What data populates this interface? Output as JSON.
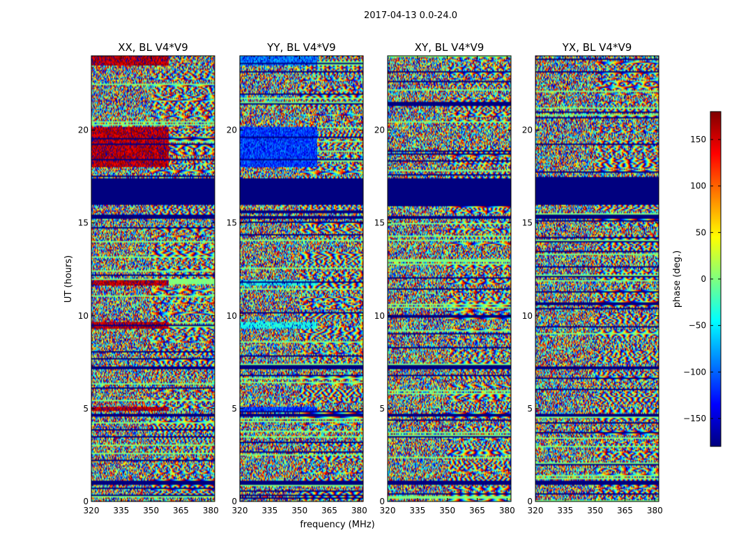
{
  "chart_data": {
    "type": "heatmap",
    "suptitle": "2017-04-13 0.0-24.0",
    "xlabel": "frequency (MHz)",
    "ylabel": "UT (hours)",
    "xlim": [
      320,
      382
    ],
    "ylim": [
      0,
      24
    ],
    "x_ticks": [
      320,
      335,
      350,
      365,
      380
    ],
    "y_ticks": [
      0,
      5,
      10,
      15,
      20
    ],
    "colorbar": {
      "label": "phase (deg.)",
      "range": [
        -180,
        180
      ],
      "ticks": [
        -150,
        -100,
        -50,
        0,
        50,
        100,
        150
      ],
      "tick_labels": [
        "−150",
        "−100",
        "−50",
        "0",
        "50",
        "100",
        "150"
      ],
      "colormap": "jet",
      "colormap_stops": [
        "#00007f",
        "#0000ff",
        "#007fff",
        "#00ffff",
        "#7fff7f",
        "#ffff00",
        "#ff7f00",
        "#ff0000",
        "#7f0000"
      ]
    },
    "panels": [
      {
        "title": "XX, BL V4*V9",
        "flagged_hours": [
          [
            16.0,
            17.4
          ],
          [
            15.2,
            15.4
          ],
          [
            7.1,
            7.3
          ],
          [
            4.6,
            4.75
          ],
          [
            0.9,
            1.1
          ]
        ],
        "coherent_blocks": [
          {
            "f": [
              320,
              359
            ],
            "t": [
              18.0,
              20.2
            ],
            "phase": 160
          },
          {
            "f": [
              320,
              359
            ],
            "t": [
              23.5,
              24.0
            ],
            "phase": 160
          },
          {
            "f": [
              320,
              359
            ],
            "t": [
              11.6,
              11.9
            ],
            "phase": 160
          },
          {
            "f": [
              320,
              359
            ],
            "t": [
              9.3,
              9.7
            ],
            "phase": 160
          },
          {
            "f": [
              320,
              359
            ],
            "t": [
              4.85,
              5.1
            ],
            "phase": 160
          }
        ]
      },
      {
        "title": "YY, BL V4*V9",
        "flagged_hours": [
          [
            16.0,
            17.4
          ],
          [
            15.2,
            15.4
          ],
          [
            7.1,
            7.3
          ],
          [
            4.6,
            4.75
          ],
          [
            0.9,
            1.1
          ]
        ],
        "coherent_blocks": [
          {
            "f": [
              320,
              359
            ],
            "t": [
              18.0,
              20.2
            ],
            "phase": -110
          },
          {
            "f": [
              320,
              359
            ],
            "t": [
              23.5,
              24.0
            ],
            "phase": -90
          },
          {
            "f": [
              320,
              359
            ],
            "t": [
              11.6,
              11.9
            ],
            "phase": -40
          },
          {
            "f": [
              320,
              359
            ],
            "t": [
              9.3,
              9.7
            ],
            "phase": -40
          },
          {
            "f": [
              320,
              359
            ],
            "t": [
              4.85,
              5.1
            ],
            "phase": -110
          }
        ]
      },
      {
        "title": "XY, BL V4*V9",
        "flagged_hours": [
          [
            16.0,
            17.4
          ],
          [
            15.2,
            15.4
          ],
          [
            7.1,
            7.3
          ],
          [
            4.6,
            4.75
          ],
          [
            0.9,
            1.1
          ]
        ],
        "coherent_blocks": []
      },
      {
        "title": "YX, BL V4*V9",
        "flagged_hours": [
          [
            16.0,
            17.4
          ],
          [
            15.2,
            15.4
          ],
          [
            7.1,
            7.3
          ],
          [
            4.6,
            4.75
          ],
          [
            0.9,
            1.1
          ]
        ],
        "coherent_blocks": []
      }
    ]
  }
}
